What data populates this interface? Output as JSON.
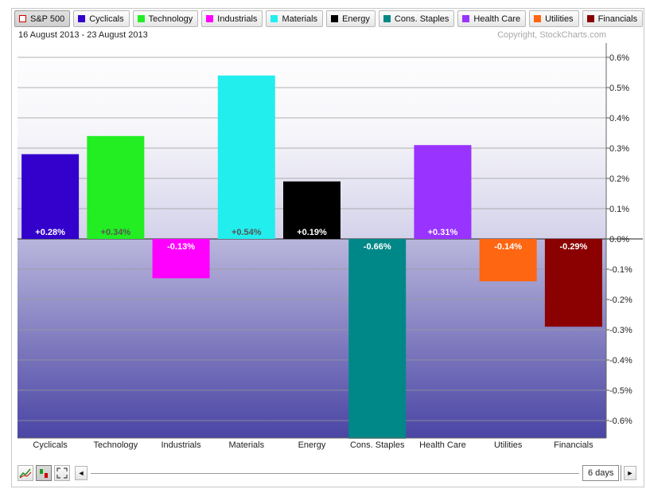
{
  "legend": [
    {
      "label": "S&P 500",
      "color": "#cc0000",
      "hollow": true,
      "active": true
    },
    {
      "label": "Cyclicals",
      "color": "#3300cc"
    },
    {
      "label": "Technology",
      "color": "#22ee22"
    },
    {
      "label": "Industrials",
      "color": "#ff00ff"
    },
    {
      "label": "Materials",
      "color": "#22eeee"
    },
    {
      "label": "Energy",
      "color": "#000000"
    },
    {
      "label": "Cons. Staples",
      "color": "#008888"
    },
    {
      "label": "Health Care",
      "color": "#9933ff"
    },
    {
      "label": "Utilities",
      "color": "#ff6611"
    },
    {
      "label": "Financials",
      "color": "#8b0000"
    }
  ],
  "date_range": "16 August 2013 - 23 August 2013",
  "copyright": "Copyright, StockCharts.com",
  "period": {
    "label": "6 days"
  },
  "nav": {
    "prev_symbol": "◄",
    "next_symbol": "►"
  },
  "chart_data": {
    "type": "bar",
    "categories": [
      "Cyclicals",
      "Technology",
      "Industrials",
      "Materials",
      "Energy",
      "Cons. Staples",
      "Health Care",
      "Utilities",
      "Financials"
    ],
    "values": [
      0.28,
      0.34,
      -0.13,
      0.54,
      0.19,
      -0.66,
      0.31,
      -0.14,
      -0.29
    ],
    "data_labels": [
      "+0.28%",
      "+0.34%",
      "-0.13%",
      "+0.54%",
      "+0.19%",
      "-0.66%",
      "+0.31%",
      "-0.14%",
      "-0.29%"
    ],
    "colors": [
      "#3300cc",
      "#22ee22",
      "#ff00ff",
      "#22eeee",
      "#000000",
      "#008888",
      "#9933ff",
      "#ff6611",
      "#8b0000"
    ],
    "label_colors": [
      "#ffffff",
      "#555555",
      "#ffffff",
      "#555555",
      "#ffffff",
      "#ffffff",
      "#ffffff",
      "#ffffff",
      "#ffffff"
    ],
    "y_ticks": [
      0.6,
      0.5,
      0.4,
      0.3,
      0.2,
      0.1,
      0.0,
      -0.1,
      -0.2,
      -0.3,
      -0.4,
      -0.5,
      -0.6
    ],
    "y_tick_labels": [
      "0.6%",
      "0.5%",
      "0.4%",
      "0.3%",
      "0.2%",
      "0.1%",
      "0.0%",
      "-0.1%",
      "-0.2%",
      "-0.3%",
      "-0.4%",
      "-0.5%",
      "-0.6%"
    ],
    "ylim": [
      -0.66,
      0.62
    ],
    "y_axis_side": "right",
    "grid": true,
    "xlabel": "",
    "ylabel": ""
  }
}
